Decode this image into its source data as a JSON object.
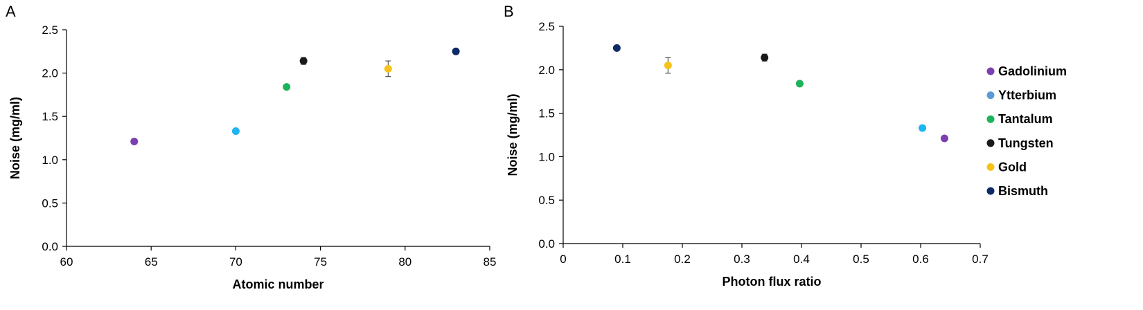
{
  "figure": {
    "panel_a_label": "A",
    "panel_b_label": "B"
  },
  "chart_data": [
    {
      "type": "scatter",
      "panel": "A",
      "xlabel": "Atomic number",
      "ylabel": "Noise (mg/ml)",
      "xlim": [
        60,
        85
      ],
      "ylim": [
        0,
        2.5
      ],
      "xticks": [
        60,
        65,
        70,
        75,
        80,
        85
      ],
      "yticks": [
        0,
        0.5,
        1,
        1.5,
        2,
        2.5
      ],
      "xtick_labels": [
        "60",
        "65",
        "70",
        "75",
        "80",
        "85"
      ],
      "ytick_labels": [
        "0.0",
        "0.5",
        "1.0",
        "1.5",
        "2.0",
        "2.5"
      ],
      "grid": false,
      "series": [
        {
          "name": "Gadolinium",
          "color": "#7B3FB0",
          "x": 64,
          "y": 1.21,
          "err": 0
        },
        {
          "name": "Ytterbium",
          "color": "#1EB4F0",
          "x": 70,
          "y": 1.33,
          "err": 0
        },
        {
          "name": "Tantalum",
          "color": "#1DB35A",
          "x": 73,
          "y": 1.84,
          "err": 0
        },
        {
          "name": "Tungsten",
          "color": "#1A1A1A",
          "x": 74,
          "y": 2.14,
          "err": 0.04
        },
        {
          "name": "Gold",
          "color": "#F7C21A",
          "x": 79,
          "y": 2.05,
          "err": 0.09
        },
        {
          "name": "Bismuth",
          "color": "#0D2A66",
          "x": 83,
          "y": 2.25,
          "err": 0
        }
      ]
    },
    {
      "type": "scatter",
      "panel": "B",
      "xlabel": "Photon flux ratio",
      "ylabel": "Noise (mg/ml)",
      "xlim": [
        0,
        0.7
      ],
      "ylim": [
        0,
        2.5
      ],
      "xticks": [
        0,
        0.1,
        0.2,
        0.3,
        0.4,
        0.5,
        0.6,
        0.7
      ],
      "yticks": [
        0,
        0.5,
        1,
        1.5,
        2,
        2.5
      ],
      "xtick_labels": [
        "0",
        "0.1",
        "0.2",
        "0.3",
        "0.4",
        "0.5",
        "0.6",
        "0.7"
      ],
      "ytick_labels": [
        "0.0",
        "0.5",
        "1.0",
        "1.5",
        "2.0",
        "2.5"
      ],
      "grid": false,
      "legend_position": "right",
      "series": [
        {
          "name": "Gadolinium",
          "color": "#7B3FB0",
          "x": 0.64,
          "y": 1.21,
          "err": 0
        },
        {
          "name": "Ytterbium",
          "color": "#1EB4F0",
          "x": 0.603,
          "y": 1.33,
          "err": 0
        },
        {
          "name": "Tantalum",
          "color": "#1DB35A",
          "x": 0.397,
          "y": 1.84,
          "err": 0
        },
        {
          "name": "Tungsten",
          "color": "#1A1A1A",
          "x": 0.338,
          "y": 2.14,
          "err": 0.04
        },
        {
          "name": "Gold",
          "color": "#F7C21A",
          "x": 0.176,
          "y": 2.05,
          "err": 0.09
        },
        {
          "name": "Bismuth",
          "color": "#0D2A66",
          "x": 0.09,
          "y": 2.25,
          "err": 0
        }
      ],
      "legend": [
        {
          "label": "Gadolinium",
          "color": "#7B3FB0"
        },
        {
          "label": "Ytterbium",
          "color": "#5B9BD5"
        },
        {
          "label": "Tantalum",
          "color": "#1DB35A"
        },
        {
          "label": "Tungsten",
          "color": "#1A1A1A"
        },
        {
          "label": "Gold",
          "color": "#F7C21A"
        },
        {
          "label": "Bismuth",
          "color": "#0D2A66"
        }
      ]
    }
  ]
}
